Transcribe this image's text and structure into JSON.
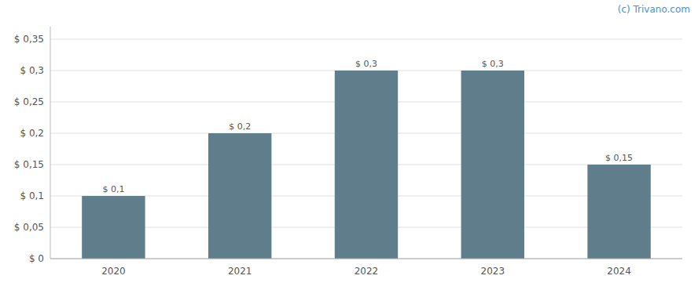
{
  "chart_data": {
    "type": "bar",
    "categories": [
      "2020",
      "2021",
      "2022",
      "2023",
      "2024"
    ],
    "values": [
      0.1,
      0.2,
      0.3,
      0.3,
      0.15
    ],
    "value_labels": [
      "$ 0,1",
      "$ 0,2",
      "$ 0,3",
      "$ 0,3",
      "$ 0,15"
    ],
    "color": "#607d8b",
    "ylim": [
      0,
      0.37
    ],
    "yticks": [
      {
        "value": 0,
        "label": "$ 0"
      },
      {
        "value": 0.05,
        "label": "$ 0,05"
      },
      {
        "value": 0.1,
        "label": "$ 0,1"
      },
      {
        "value": 0.15,
        "label": "$ 0,15"
      },
      {
        "value": 0.2,
        "label": "$ 0,2"
      },
      {
        "value": 0.25,
        "label": "$ 0,25"
      },
      {
        "value": 0.3,
        "label": "$ 0,3"
      },
      {
        "value": 0.35,
        "label": "$ 0,35"
      }
    ],
    "grid": true,
    "data_labels": true,
    "annotations": [
      "(c) Trivano.com"
    ]
  }
}
